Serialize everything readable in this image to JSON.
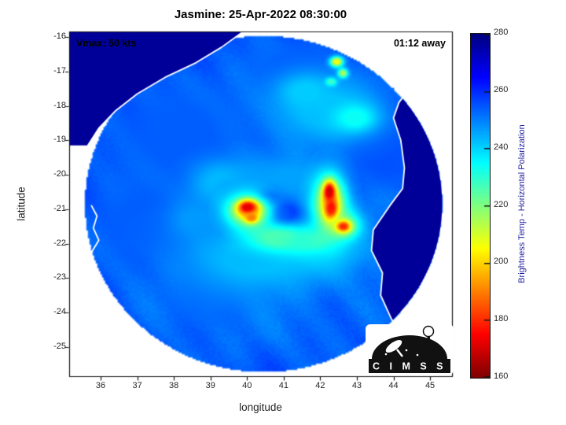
{
  "chart_data": {
    "type": "heatmap",
    "title": "Jasmine: 25-Apr-2022 08:30:00",
    "storm": {
      "name": "Jasmine",
      "timestamp": "25-Apr-2022 08:30:00",
      "vmax_kts": 50,
      "eta": "01:12"
    },
    "annotations": {
      "vmax": "Vmax: 50 kts",
      "eta": "01:12 away"
    },
    "xlabel": "longitude",
    "ylabel": "latitude",
    "xlim": [
      35.14,
      45.6
    ],
    "ylim": [
      -25.85,
      -15.84
    ],
    "x_ticks": [
      36,
      37,
      38,
      39,
      40,
      41,
      42,
      43,
      44,
      45
    ],
    "y_ticks": [
      -16,
      -17,
      -18,
      -19,
      -20,
      -21,
      -22,
      -23,
      -24,
      -25
    ],
    "colorbar": {
      "label": "Brightness Temp - Horizontal Polarization",
      "min": 160,
      "max": 280,
      "ticks": [
        160,
        180,
        200,
        220,
        240,
        260,
        280
      ],
      "colormap": "jet_reversed_high_blue_low_red"
    },
    "swath": {
      "center_lon": 40.45,
      "center_lat": -20.85,
      "radius_deg": 4.88,
      "base_temp_k": 252,
      "land_temp_k": 277
    },
    "features_columns": [
      "lon",
      "lat",
      "sigma_lon",
      "sigma_lat",
      "brightness_temp_k"
    ],
    "features": [
      [
        38.2,
        -18.8,
        1.3,
        1.0,
        254
      ],
      [
        37.2,
        -21.3,
        1.1,
        0.9,
        254
      ],
      [
        39.0,
        -23.4,
        0.9,
        0.7,
        253
      ],
      [
        43.6,
        -19.2,
        0.9,
        0.9,
        256
      ],
      [
        41.3,
        -16.9,
        0.9,
        0.6,
        254
      ],
      [
        40.2,
        -22.4,
        1.3,
        0.75,
        243
      ],
      [
        42.2,
        -18.15,
        1.1,
        0.7,
        243
      ],
      [
        41.6,
        -17.6,
        0.5,
        0.35,
        241
      ],
      [
        41.9,
        -22.15,
        0.85,
        0.5,
        240
      ],
      [
        42.35,
        -21.4,
        0.6,
        0.45,
        239
      ],
      [
        42.95,
        -18.35,
        0.4,
        0.28,
        234
      ],
      [
        39.35,
        -20.3,
        0.55,
        0.45,
        241
      ],
      [
        39.9,
        -20.55,
        0.8,
        0.5,
        245
      ],
      [
        41.2,
        -20.15,
        0.75,
        0.5,
        246
      ],
      [
        38.6,
        -21.3,
        0.5,
        0.4,
        247
      ],
      [
        40.55,
        -21.6,
        0.55,
        0.3,
        237
      ],
      [
        41.5,
        -21.05,
        0.45,
        0.3,
        243
      ],
      [
        41.05,
        -21.1,
        0.42,
        0.3,
        257
      ],
      [
        40.55,
        -20.72,
        0.25,
        0.18,
        256
      ],
      [
        40.9,
        -21.85,
        0.55,
        0.25,
        226
      ],
      [
        41.7,
        -21.95,
        0.45,
        0.22,
        230
      ],
      [
        40.05,
        -21.05,
        0.38,
        0.3,
        206
      ],
      [
        40.02,
        -20.95,
        0.17,
        0.13,
        172
      ],
      [
        40.12,
        -21.25,
        0.12,
        0.1,
        190
      ],
      [
        42.27,
        -20.8,
        0.3,
        0.55,
        208
      ],
      [
        42.25,
        -20.5,
        0.11,
        0.2,
        170
      ],
      [
        42.3,
        -21.0,
        0.12,
        0.22,
        176
      ],
      [
        42.62,
        -21.5,
        0.26,
        0.22,
        212
      ],
      [
        42.63,
        -21.5,
        0.12,
        0.1,
        180
      ],
      [
        42.45,
        -16.72,
        0.12,
        0.1,
        207
      ],
      [
        42.62,
        -17.05,
        0.09,
        0.09,
        216
      ],
      [
        42.3,
        -17.3,
        0.1,
        0.08,
        228
      ]
    ],
    "coastlines": {
      "africa_coast": [
        [
          39.9,
          -15.84
        ],
        [
          39.3,
          -16.3
        ],
        [
          38.6,
          -16.75
        ],
        [
          37.8,
          -17.15
        ],
        [
          37.0,
          -17.65
        ],
        [
          36.4,
          -18.15
        ],
        [
          35.95,
          -18.65
        ],
        [
          35.65,
          -19.15
        ],
        [
          35.42,
          -19.7
        ],
        [
          35.28,
          -20.15
        ]
      ],
      "madagascar_coast": [
        [
          45.6,
          -16.45
        ],
        [
          45.05,
          -16.85
        ],
        [
          44.55,
          -17.35
        ],
        [
          44.15,
          -17.9
        ],
        [
          44.0,
          -18.35
        ],
        [
          44.2,
          -19.0
        ],
        [
          44.3,
          -19.8
        ],
        [
          44.25,
          -20.4
        ],
        [
          43.9,
          -20.9
        ],
        [
          43.45,
          -21.6
        ],
        [
          43.4,
          -22.2
        ],
        [
          43.7,
          -22.85
        ],
        [
          43.65,
          -23.5
        ],
        [
          43.95,
          -24.2
        ],
        [
          44.4,
          -24.8
        ],
        [
          45.1,
          -25.3
        ],
        [
          45.6,
          -25.5
        ]
      ],
      "islands": [
        [
          [
            35.75,
            -20.9
          ],
          [
            35.9,
            -21.2
          ],
          [
            35.8,
            -21.55
          ],
          [
            35.95,
            -21.9
          ],
          [
            35.75,
            -22.25
          ]
        ]
      ]
    }
  },
  "logo": {
    "text": "C I M S S"
  },
  "colors": {
    "background": "#ffffff",
    "coastline": "#ffffff",
    "axis": "#151515",
    "tick_label": "#262626",
    "colorbar_label": "#1f1f9e",
    "title": "#000000"
  }
}
